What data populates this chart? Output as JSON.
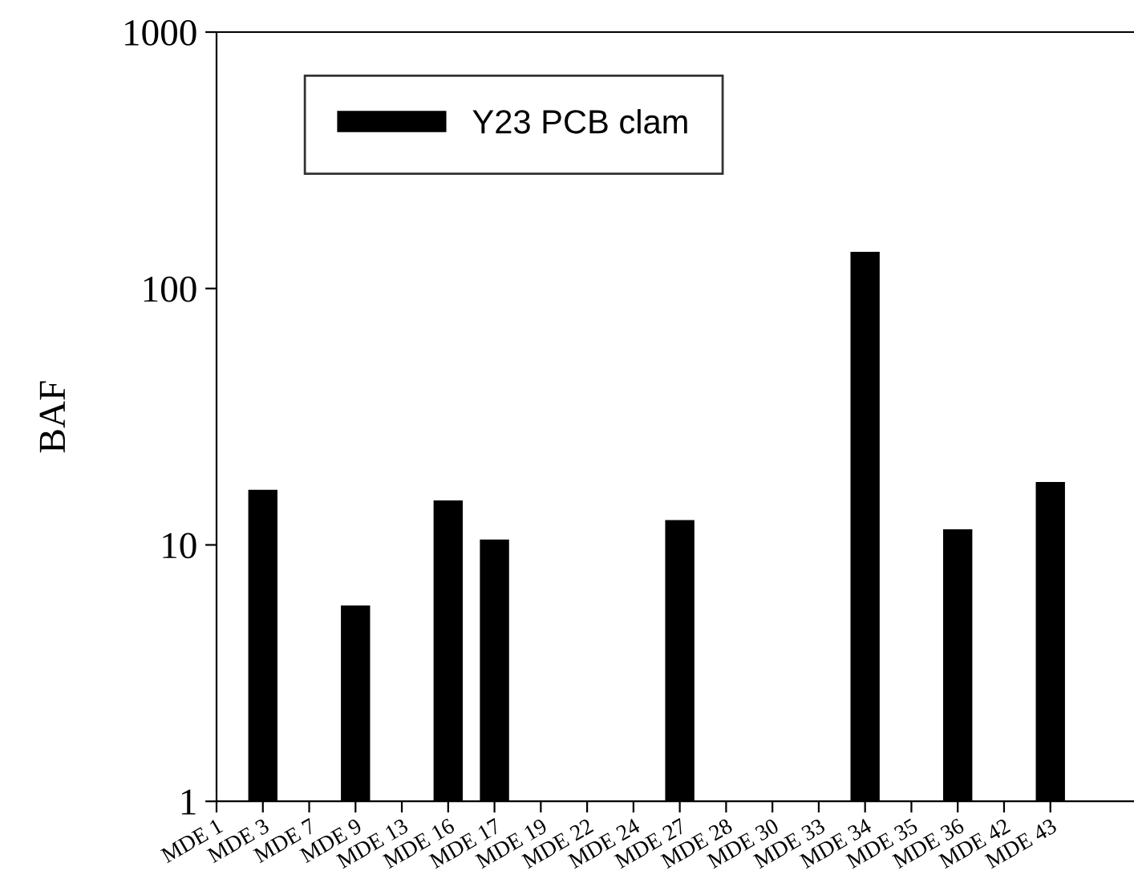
{
  "chart_data": {
    "type": "bar",
    "ylabel": "BAF",
    "categories": [
      "MDE 1",
      "MDE 3",
      "MDE 7",
      "MDE 9",
      "MDE 13",
      "MDE 16",
      "MDE 17",
      "MDE 19",
      "MDE 22",
      "MDE 24",
      "MDE 27",
      "MDE 28",
      "MDE 30",
      "MDE 33",
      "MDE 34",
      "MDE 35",
      "MDE 36",
      "MDE 42",
      "MDE 43"
    ],
    "series": [
      {
        "name": "Y23 PCB clam",
        "color": "#000000",
        "values": [
          null,
          16.4,
          null,
          5.8,
          null,
          14.9,
          10.5,
          null,
          null,
          null,
          12.5,
          null,
          null,
          null,
          139,
          null,
          11.5,
          null,
          17.6
        ]
      }
    ],
    "log": true,
    "ylim": [
      1,
      1000
    ],
    "yticks": [
      1,
      10,
      100,
      1000
    ],
    "grid": false,
    "legend": "top"
  }
}
